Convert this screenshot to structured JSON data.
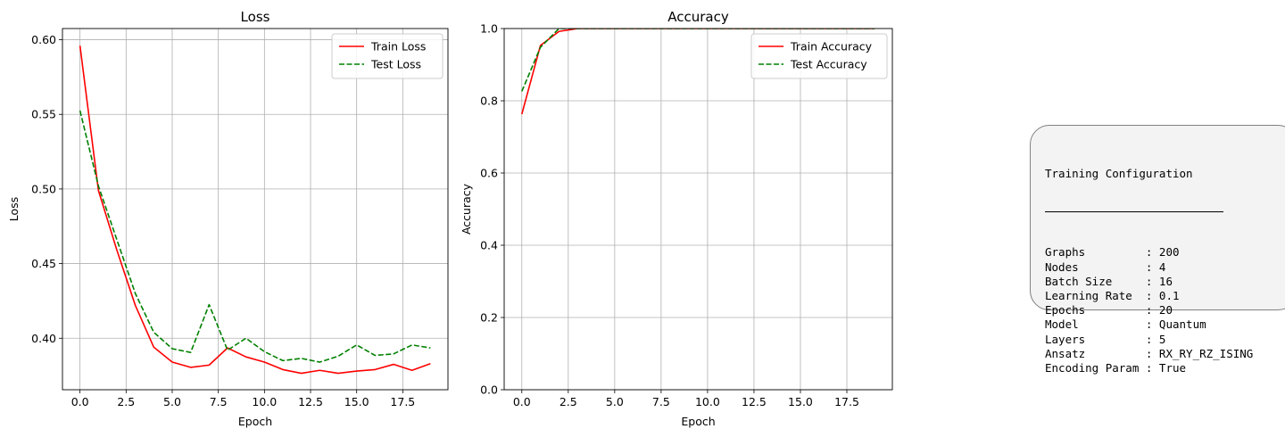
{
  "chart_data": [
    {
      "type": "line",
      "title": "Loss",
      "xlabel": "Epoch",
      "ylabel": "Loss",
      "x": [
        0,
        1,
        2,
        3,
        4,
        5,
        6,
        7,
        8,
        9,
        10,
        11,
        12,
        13,
        14,
        15,
        16,
        17,
        18,
        19
      ],
      "xlim": [
        -0.95,
        19.95
      ],
      "ylim": [
        0.3655,
        0.6075
      ],
      "xticks": [
        0.0,
        2.5,
        5.0,
        7.5,
        10.0,
        12.5,
        15.0,
        17.5
      ],
      "xtick_labels": [
        "0.0",
        "2.5",
        "5.0",
        "7.5",
        "10.0",
        "12.5",
        "15.0",
        "17.5"
      ],
      "yticks": [
        0.4,
        0.45,
        0.5,
        0.55,
        0.6
      ],
      "ytick_labels": [
        "0.40",
        "0.45",
        "0.50",
        "0.55",
        "0.60"
      ],
      "grid": true,
      "legend": "top-right",
      "series": [
        {
          "name": "Train Loss",
          "color": "#ff0000",
          "dash": "solid",
          "values": [
            0.596,
            0.499,
            0.459,
            0.422,
            0.394,
            0.384,
            0.3805,
            0.382,
            0.3935,
            0.3875,
            0.384,
            0.379,
            0.3765,
            0.3785,
            0.3765,
            0.378,
            0.379,
            0.3825,
            0.3785,
            0.383
          ]
        },
        {
          "name": "Test Loss",
          "color": "#008000",
          "dash": "dashed",
          "values": [
            0.5525,
            0.502,
            0.466,
            0.43,
            0.404,
            0.393,
            0.3905,
            0.4225,
            0.392,
            0.4,
            0.391,
            0.385,
            0.3865,
            0.384,
            0.388,
            0.3955,
            0.3885,
            0.3895,
            0.3955,
            0.3935
          ]
        }
      ]
    },
    {
      "type": "line",
      "title": "Accuracy",
      "xlabel": "Epoch",
      "ylabel": "Accuracy",
      "x": [
        0,
        1,
        2,
        3,
        4,
        5,
        6,
        7,
        8,
        9,
        10,
        11,
        12,
        13,
        14,
        15,
        16,
        17,
        18,
        19
      ],
      "xlim": [
        -0.95,
        19.95
      ],
      "ylim": [
        0.0,
        1.0
      ],
      "xticks": [
        0.0,
        2.5,
        5.0,
        7.5,
        10.0,
        12.5,
        15.0,
        17.5
      ],
      "xtick_labels": [
        "0.0",
        "2.5",
        "5.0",
        "7.5",
        "10.0",
        "12.5",
        "15.0",
        "17.5"
      ],
      "yticks": [
        0.0,
        0.2,
        0.4,
        0.6,
        0.8,
        1.0
      ],
      "ytick_labels": [
        "0.0",
        "0.2",
        "0.4",
        "0.6",
        "0.8",
        "1.0"
      ],
      "grid": true,
      "legend": "top-right",
      "series": [
        {
          "name": "Train Accuracy",
          "color": "#ff0000",
          "dash": "solid",
          "values": [
            0.763,
            0.953,
            0.992,
            1.0,
            1.0,
            1.0,
            1.0,
            1.0,
            1.0,
            1.0,
            1.0,
            1.0,
            1.0,
            1.0,
            1.0,
            1.0,
            1.0,
            1.0,
            1.0,
            1.0
          ]
        },
        {
          "name": "Test Accuracy",
          "color": "#008000",
          "dash": "dashed",
          "values": [
            0.826,
            0.948,
            1.0,
            1.0,
            1.0,
            1.0,
            1.0,
            1.0,
            1.0,
            1.0,
            1.0,
            1.0,
            1.0,
            1.0,
            1.0,
            1.0,
            1.0,
            1.0,
            1.0,
            1.0
          ]
        }
      ]
    }
  ],
  "config": {
    "heading": "Training Configuration",
    "lines": [
      "Graphs         : 200",
      "Nodes          : 4",
      "Batch Size     : 16",
      "Learning Rate  : 0.1",
      "Epochs         : 20",
      "Model          : Quantum",
      "Layers         : 5",
      "Ansatz         : RX_RY_RZ_ISING",
      "Encoding Param : True"
    ]
  }
}
